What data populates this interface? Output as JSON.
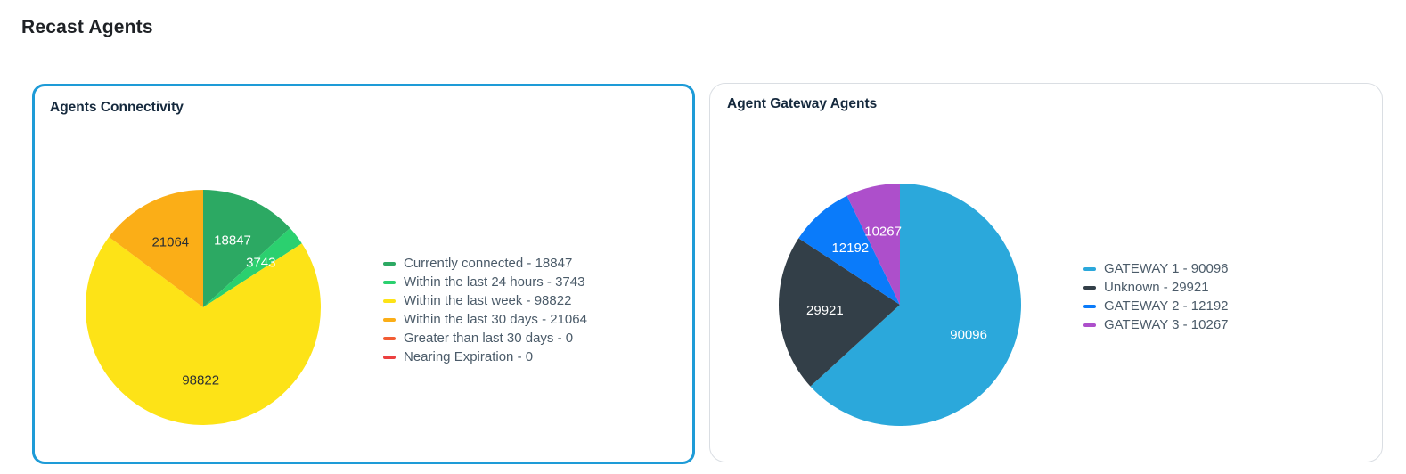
{
  "page": {
    "title": "Recast Agents"
  },
  "colors": {
    "selected_card_border": "#1e9bd7",
    "card_border": "#dadee3",
    "legend_text": "#4b5b69",
    "card_title_text": "#15293d",
    "page_title_text": "#1e2125"
  },
  "chart_data": [
    {
      "type": "pie",
      "title": "Agents Connectivity",
      "legend_position": "right",
      "start_angle": "top",
      "direction": "clockwise",
      "label_radius_ratio": 0.62,
      "series": [
        {
          "name": "Currently connected",
          "value": 18847,
          "color": "#2ca963",
          "label_color": "#ffffff"
        },
        {
          "name": "Within the last 24 hours",
          "value": 3743,
          "color": "#2bd06f",
          "label_color": "#ffffff"
        },
        {
          "name": "Within the last week",
          "value": 98822,
          "color": "#fde317",
          "label_color": "#2b2f33"
        },
        {
          "name": "Within the last 30 days",
          "value": 21064,
          "color": "#fbae17",
          "label_color": "#2b2f33"
        },
        {
          "name": "Greater than last 30 days",
          "value": 0,
          "color": "#f25c33"
        },
        {
          "name": "Nearing Expiration",
          "value": 0,
          "color": "#ec4040"
        }
      ]
    },
    {
      "type": "pie",
      "title": "Agent Gateway Agents",
      "legend_position": "right",
      "start_angle": "top",
      "direction": "clockwise",
      "label_radius_ratio": 0.62,
      "series": [
        {
          "name": "GATEWAY 1",
          "value": 90096,
          "color": "#2ba8db",
          "label_color": "#ffffff"
        },
        {
          "name": "Unknown",
          "value": 29921,
          "color": "#333f48",
          "label_color": "#ffffff"
        },
        {
          "name": "GATEWAY 2",
          "value": 12192,
          "color": "#0a7bfa",
          "label_color": "#ffffff"
        },
        {
          "name": "GATEWAY 3",
          "value": 10267,
          "color": "#ad4fcb",
          "label_color": "#ffffff"
        }
      ]
    }
  ]
}
